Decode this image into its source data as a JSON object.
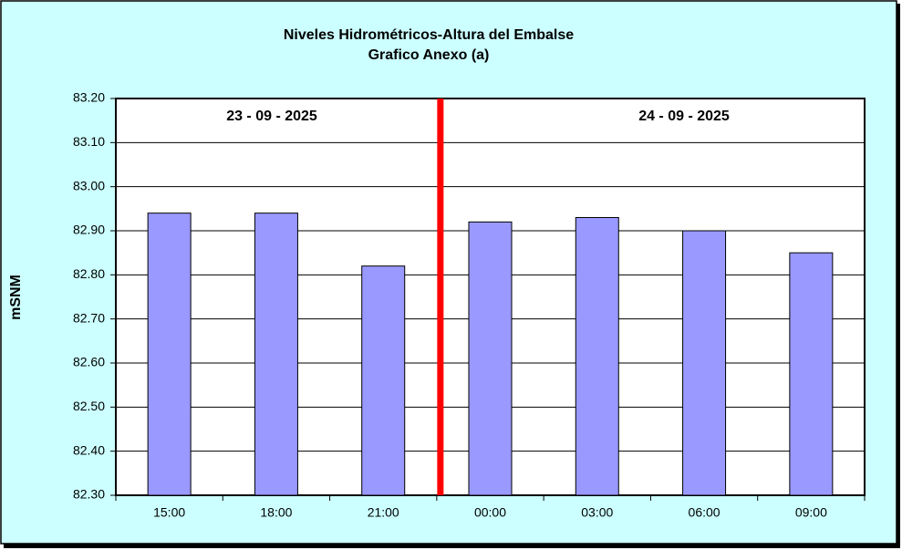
{
  "chart_data": {
    "type": "bar",
    "title": "Niveles Hidrométricos-Altura del Embalse",
    "subtitle": "Grafico Anexo (a)",
    "y_label": "mSNM",
    "annotations": [
      "23 - 09 - 2025",
      "24 - 09 - 2025"
    ],
    "categories": [
      "15:00",
      "18:00",
      "21:00",
      "00:00",
      "03:00",
      "06:00",
      "09:00"
    ],
    "values": [
      82.94,
      82.94,
      82.82,
      82.92,
      82.93,
      82.9,
      82.85
    ],
    "color": "#9999ff",
    "ylim": [
      82.3,
      83.2
    ],
    "yticks": [
      {
        "value": 82.3,
        "label": "82.30"
      },
      {
        "value": 82.4,
        "label": "82.40"
      },
      {
        "value": 82.5,
        "label": "82.50"
      },
      {
        "value": 82.6,
        "label": "82.60"
      },
      {
        "value": 82.7,
        "label": "82.70"
      },
      {
        "value": 82.8,
        "label": "82.80"
      },
      {
        "value": 82.9,
        "label": "82.90"
      },
      {
        "value": 83.0,
        "label": "83.00"
      },
      {
        "value": 83.1,
        "label": "83.10"
      },
      {
        "value": 83.2,
        "label": "83.20"
      }
    ],
    "grid": true
  }
}
